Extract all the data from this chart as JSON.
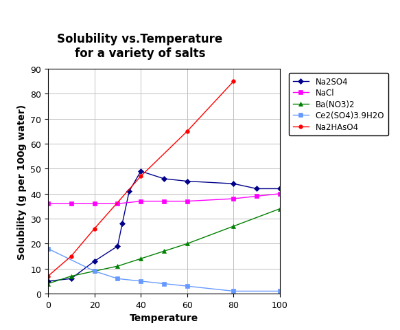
{
  "title": "Solubility vs.Temperature\nfor a variety of salts",
  "xlabel": "Temperature",
  "ylabel": "Solubility (g per 100g water)",
  "xlim": [
    0,
    100
  ],
  "ylim": [
    0,
    90
  ],
  "xticks": [
    0,
    20,
    40,
    60,
    80,
    100
  ],
  "yticks": [
    0,
    10,
    20,
    30,
    40,
    50,
    60,
    70,
    80,
    90
  ],
  "series": [
    {
      "label": "Na2SO4",
      "color": "#00008B",
      "marker": "D",
      "markersize": 4,
      "x": [
        0,
        10,
        20,
        30,
        32,
        35,
        40,
        50,
        60,
        80,
        90,
        100
      ],
      "y": [
        5,
        6,
        13,
        19,
        28,
        41,
        49,
        46,
        45,
        44,
        42,
        42
      ]
    },
    {
      "label": "NaCl",
      "color": "#FF00FF",
      "marker": "s",
      "markersize": 4,
      "x": [
        0,
        10,
        20,
        30,
        40,
        50,
        60,
        80,
        90,
        100
      ],
      "y": [
        36,
        36,
        36,
        36,
        37,
        37,
        37,
        38,
        39,
        40
      ]
    },
    {
      "label": "Ba(NO3)2",
      "color": "#008000",
      "marker": "^",
      "markersize": 4,
      "x": [
        0,
        10,
        20,
        30,
        40,
        50,
        60,
        80,
        100
      ],
      "y": [
        4,
        7,
        9,
        11,
        14,
        17,
        20,
        27,
        34
      ]
    },
    {
      "label": "Ce2(SO4)3.9H2O",
      "color": "#6699FF",
      "marker": "s",
      "markersize": 4,
      "x": [
        0,
        20,
        30,
        40,
        50,
        60,
        80,
        100
      ],
      "y": [
        18,
        9,
        6,
        5,
        4,
        3,
        1,
        1
      ]
    },
    {
      "label": "Na2HAsO4",
      "color": "#FF0000",
      "marker": "o",
      "markersize": 4,
      "x": [
        0,
        10,
        20,
        40,
        60,
        80
      ],
      "y": [
        7,
        15,
        26,
        47,
        65,
        85
      ]
    }
  ],
  "background_color": "#FFFFFF",
  "grid_color": "#C0C0C0",
  "title_fontsize": 12,
  "label_fontsize": 10,
  "tick_fontsize": 9,
  "legend_fontsize": 8.5
}
